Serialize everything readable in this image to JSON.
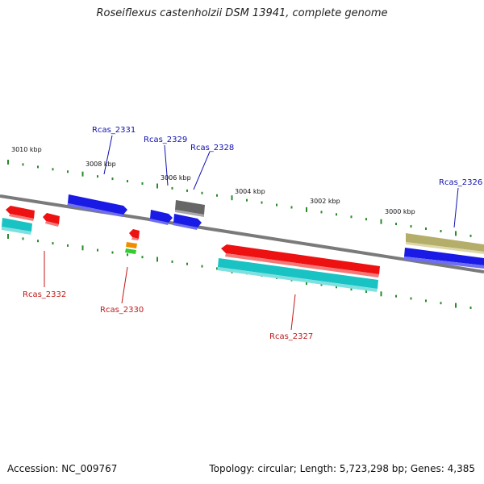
{
  "title": "Roseiflexus castenholzii DSM 13941, complete genome",
  "footer": {
    "accession": "Accession: NC_009767",
    "summary": "Topology: circular; Length: 5,723,298 bp; Genes: 4,385"
  },
  "colors": {
    "backbone": "#7a7a7a",
    "tick": "#2a8a2a",
    "label_forward": "#1010b0",
    "label_reverse": "#c01818",
    "red": "#ee1111",
    "blue": "#1a1ae6",
    "cyan": "#19c3c3",
    "gray": "#666666",
    "khaki": "#b5ae6a",
    "orange": "#f08c00",
    "green": "#33cc33"
  },
  "scale_labels": [
    "3010 kbp",
    "3008 kbp",
    "3006 kbp",
    "3004 kbp",
    "3002 kbp",
    "3000 kbp"
  ],
  "gene_labels": [
    {
      "text": "Rcas_2331",
      "strand": "forward"
    },
    {
      "text": "Rcas_2329",
      "strand": "forward"
    },
    {
      "text": "Rcas_2328",
      "strand": "forward"
    },
    {
      "text": "Rcas_2326",
      "strand": "forward"
    },
    {
      "text": "Rcas_2332",
      "strand": "reverse"
    },
    {
      "text": "Rcas_2330",
      "strand": "reverse"
    },
    {
      "text": "Rcas_2327",
      "strand": "reverse"
    }
  ]
}
